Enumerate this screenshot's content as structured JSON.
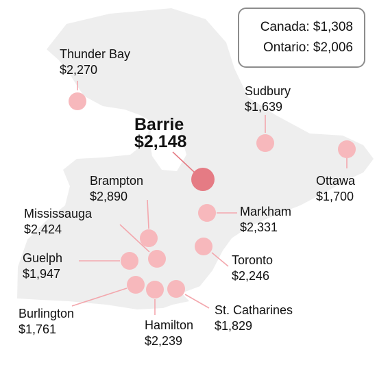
{
  "summary": {
    "canada": "Canada: $1,308",
    "ontario": "Ontario: $2,006"
  },
  "colors": {
    "map_land": "#eeeeee",
    "dot": "#f7b8bc",
    "dot_featured": "#e57b84",
    "leader_line": "#f3a7ad"
  },
  "cities": [
    {
      "key": "thunder-bay",
      "name": "Thunder Bay",
      "rent": "$2,270",
      "featured": false
    },
    {
      "key": "sudbury",
      "name": "Sudbury",
      "rent": "$1,639",
      "featured": false
    },
    {
      "key": "barrie",
      "name": "Barrie",
      "rent": "$2,148",
      "featured": true
    },
    {
      "key": "ottawa",
      "name": "Ottawa",
      "rent": "$1,700",
      "featured": false
    },
    {
      "key": "brampton",
      "name": "Brampton",
      "rent": "$2,890",
      "featured": false
    },
    {
      "key": "mississauga",
      "name": "Mississauga",
      "rent": "$2,424",
      "featured": false
    },
    {
      "key": "markham",
      "name": "Markham",
      "rent": "$2,331",
      "featured": false
    },
    {
      "key": "guelph",
      "name": "Guelph",
      "rent": "$1,947",
      "featured": false
    },
    {
      "key": "toronto",
      "name": "Toronto",
      "rent": "$2,246",
      "featured": false
    },
    {
      "key": "burlington",
      "name": "Burlington",
      "rent": "$1,761",
      "featured": false
    },
    {
      "key": "hamilton",
      "name": "Hamilton",
      "rent": "$2,239",
      "featured": false
    },
    {
      "key": "st-catharines",
      "name": "St. Catharines",
      "rent": "$1,829",
      "featured": false
    }
  ]
}
